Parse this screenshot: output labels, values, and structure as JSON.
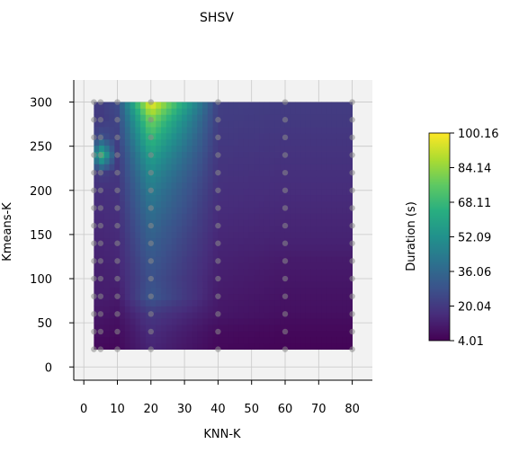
{
  "chart_data": {
    "type": "heatmap",
    "title": "SHSV",
    "xlabel": "KNN-K",
    "ylabel": "Kmeans-K",
    "colorbar_label": "Duration (s)",
    "colormap": "viridis",
    "xlim": [
      -3,
      86
    ],
    "ylim": [
      -15,
      325
    ],
    "x_ticks": [
      0,
      10,
      20,
      30,
      40,
      50,
      60,
      70,
      80
    ],
    "y_ticks": [
      0,
      50,
      100,
      150,
      200,
      250,
      300
    ],
    "colorbar_ticks": [
      "4.01",
      "20.04",
      "36.06",
      "52.09",
      "68.11",
      "84.14",
      "100.16"
    ],
    "colorbar_range": [
      4.01,
      100.16
    ],
    "grid": true,
    "sample_x": [
      3,
      5,
      10,
      20,
      40,
      60,
      80
    ],
    "sample_y": [
      20,
      40,
      60,
      80,
      100,
      120,
      140,
      160,
      180,
      200,
      220,
      240,
      260,
      280,
      300
    ],
    "durations": [
      [
        6,
        6,
        6,
        14,
        6,
        5,
        5
      ],
      [
        8,
        8,
        7,
        16,
        7,
        6,
        6
      ],
      [
        10,
        10,
        9,
        20,
        10,
        8,
        8
      ],
      [
        12,
        12,
        11,
        30,
        11,
        9,
        9
      ],
      [
        12,
        12,
        13,
        28,
        12,
        10,
        10
      ],
      [
        13,
        13,
        14,
        30,
        13,
        11,
        11
      ],
      [
        14,
        14,
        15,
        33,
        14,
        13,
        13
      ],
      [
        15,
        15,
        16,
        36,
        15,
        14,
        14
      ],
      [
        16,
        16,
        17,
        40,
        16,
        15,
        15
      ],
      [
        17,
        17,
        18,
        44,
        17,
        16,
        16
      ],
      [
        18,
        22,
        19,
        50,
        18,
        17,
        17
      ],
      [
        40,
        70,
        20,
        58,
        19,
        18,
        18
      ],
      [
        22,
        28,
        22,
        68,
        20,
        19,
        19
      ],
      [
        20,
        20,
        24,
        80,
        21,
        20,
        20
      ],
      [
        21,
        21,
        26,
        100,
        22,
        21,
        21
      ]
    ]
  }
}
